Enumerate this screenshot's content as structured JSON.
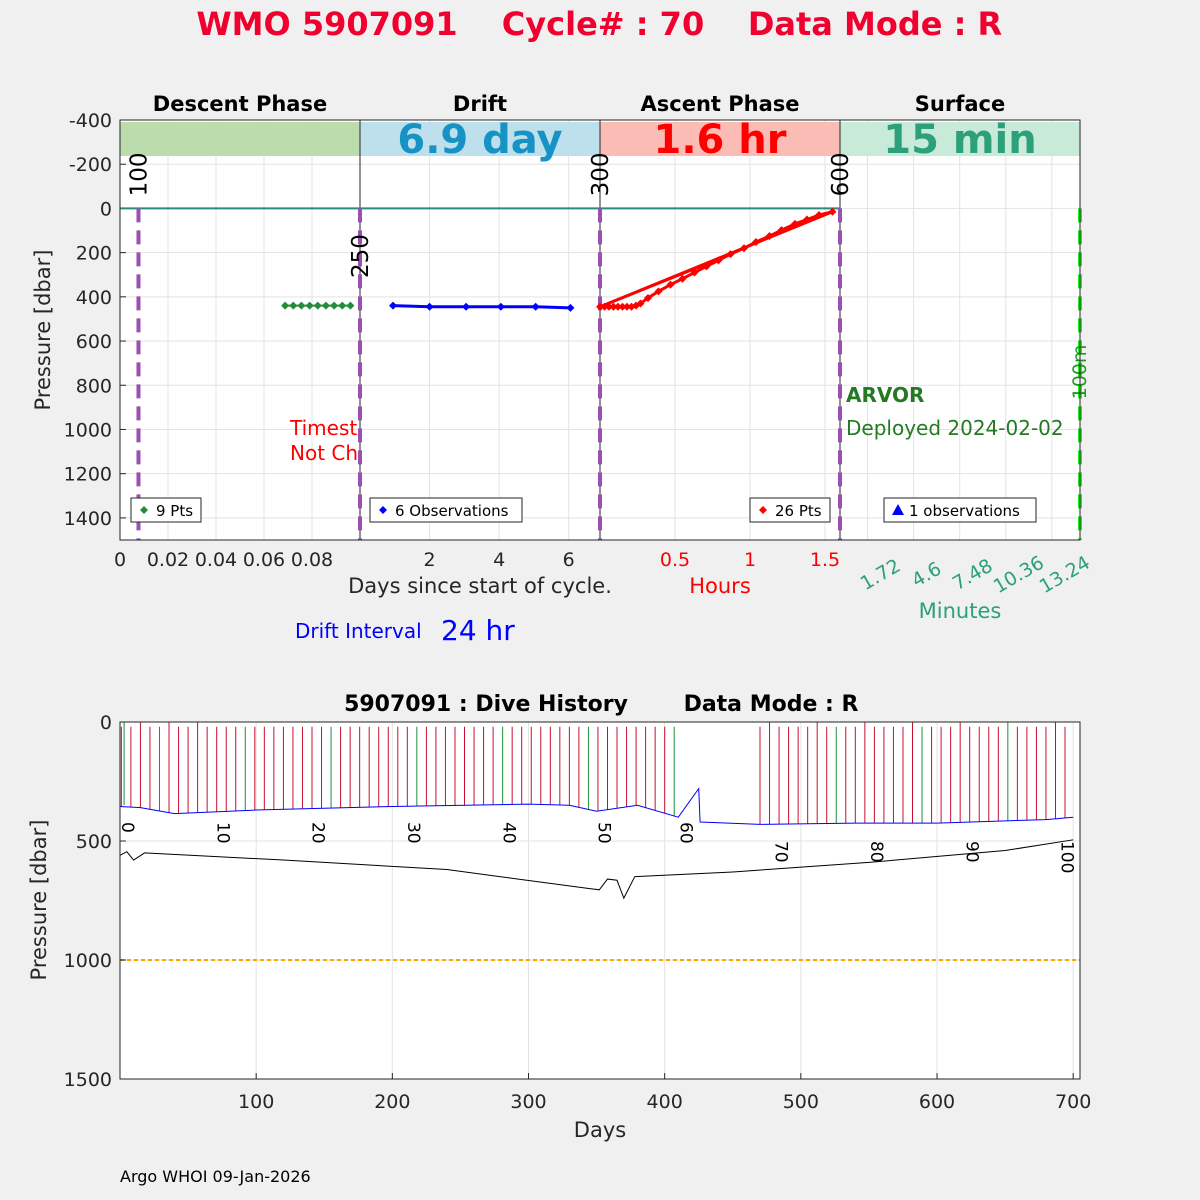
{
  "title": {
    "wmo": "WMO 5907091",
    "cycle": "Cycle# : 70",
    "mode": "Data Mode : R"
  },
  "colors": {
    "title": "#f0002e",
    "descent": "#238b3c",
    "drift": "#0000ff",
    "ascent": "#ff0000",
    "surface": "#2ca07a",
    "marker_line": "#9b4fb0",
    "surface_line": "#22ee22",
    "deploy_text": "#237a23",
    "history_profile": "#c8102e",
    "history_drift": "#0000ff",
    "history_park": "#000000",
    "history_ref": "#ffa500"
  },
  "phases": {
    "descent": {
      "label": "Descent Phase",
      "band_value": ""
    },
    "drift": {
      "label": "Drift",
      "band_value": "6.9 day"
    },
    "ascent": {
      "label": "Ascent Phase",
      "band_value": "1.6 hr"
    },
    "surface": {
      "label": "Surface",
      "band_value": "15 min"
    }
  },
  "top_chart": {
    "ylabel": "Pressure [dbar]",
    "ylim": [
      -400,
      1500
    ],
    "yticks": [
      -400,
      -200,
      0,
      200,
      400,
      600,
      800,
      1000,
      1200,
      1400
    ],
    "y_reversed": true,
    "grid": true,
    "descent_axis": {
      "xlim": [
        0,
        0.1
      ],
      "ticks": [
        "0",
        "0.02",
        "0.04",
        "0.06",
        "0.08"
      ],
      "tick_values": [
        0,
        0.02,
        0.04,
        0.06,
        0.08
      ],
      "xlabel": "Days since start of cycle."
    },
    "drift_axis": {
      "xlim": [
        0,
        6.9
      ],
      "ticks": [
        "2",
        "4",
        "6"
      ],
      "tick_values": [
        2,
        4,
        6
      ]
    },
    "ascent_axis": {
      "xlim": [
        0,
        1.6
      ],
      "ticks": [
        "0.5",
        "1",
        "1.5"
      ],
      "tick_values": [
        0.5,
        1,
        1.5
      ],
      "xlabel": "Hours"
    },
    "surface_axis": {
      "xlim": [
        0,
        15
      ],
      "ticks": [
        "1.72",
        "4.6",
        "7.48",
        "10.36",
        "13.24"
      ],
      "tick_values": [
        1.72,
        4.6,
        7.48,
        10.36,
        13.24
      ],
      "xlabel": "Minutes"
    },
    "vertical_markers": [
      {
        "label": "100",
        "axis": "descent",
        "x": 0.0077
      },
      {
        "label": "250",
        "axis": "drift",
        "x": 0.0
      },
      {
        "label": "300",
        "axis": "ascent",
        "x": 0.0
      },
      {
        "label": "600",
        "axis": "surface",
        "x": 0.0
      },
      {
        "label": "100m",
        "axis": "surface",
        "x": 15.0
      }
    ],
    "descent_points": {
      "x": [
        0.0688,
        0.0722,
        0.0756,
        0.079,
        0.0824,
        0.0858,
        0.0892,
        0.0926,
        0.096
      ],
      "y": [
        440,
        440,
        440,
        440,
        440,
        440,
        440,
        440,
        440
      ]
    },
    "drift_points": {
      "x": [
        0.95,
        2.0,
        3.05,
        4.05,
        5.05,
        6.05
      ],
      "y": [
        440,
        445,
        445,
        445,
        445,
        450
      ]
    },
    "ascent_points": {
      "x": [
        0.0,
        0.03,
        0.06,
        0.09,
        0.12,
        0.15,
        0.18,
        0.21,
        0.24,
        0.27,
        0.32,
        0.39,
        0.47,
        0.55,
        0.63,
        0.71,
        0.79,
        0.87,
        0.96,
        1.04,
        1.13,
        1.21,
        1.3,
        1.38,
        1.46,
        1.55
      ],
      "y": [
        445,
        445,
        445,
        445,
        445,
        445,
        445,
        445,
        440,
        430,
        405,
        375,
        345,
        318,
        290,
        262,
        235,
        207,
        180,
        152,
        125,
        98,
        70,
        50,
        30,
        15
      ],
      "path_order": [
        0,
        1,
        2,
        3,
        4,
        5,
        6,
        7,
        8,
        9,
        10,
        11,
        12,
        13,
        14,
        15,
        16,
        17,
        18,
        19,
        20,
        21,
        22,
        23,
        24,
        25,
        0,
        17,
        0
      ]
    },
    "legends": {
      "descent": "9 Pts",
      "drift": "6 Observations",
      "ascent": "26 Pts",
      "surface": "1 observations"
    },
    "annotations": {
      "timestamp_line1": "Timest",
      "timestamp_line2": "Not Ch",
      "float_type": "ARVOR",
      "deployed": "Deployed 2024-02-02"
    },
    "drift_interval_label": "Drift Interval",
    "drift_interval_value": "24 hr"
  },
  "history_chart": {
    "title_left": "5907091 : Dive History",
    "title_right": "Data Mode : R",
    "xlabel": "Days",
    "ylabel": "Pressure [dbar]",
    "xlim": [
      0,
      705
    ],
    "ylim": [
      0,
      1500
    ],
    "y_reversed": true,
    "xticks": [
      100,
      200,
      300,
      400,
      500,
      600,
      700
    ],
    "yticks": [
      0,
      500,
      1000,
      1500
    ],
    "ref_depth": 1000,
    "cycle_labels": [
      "0",
      "10",
      "20",
      "30",
      "40",
      "50",
      "60",
      "70",
      "80",
      "90",
      "100"
    ],
    "cycle_label_days": [
      0,
      70,
      140,
      210,
      280,
      350,
      410,
      480,
      550,
      620,
      690
    ],
    "park_line": {
      "x": [
        0,
        5,
        10,
        18,
        120,
        240,
        345,
        352,
        358,
        365,
        370,
        378,
        450,
        550,
        650,
        700
      ],
      "y": [
        560,
        545,
        580,
        550,
        580,
        620,
        700,
        705,
        660,
        665,
        740,
        650,
        630,
        590,
        540,
        495
      ]
    },
    "drift_line": {
      "x": [
        0,
        15,
        40,
        100,
        200,
        300,
        330,
        350,
        380,
        410,
        425,
        426,
        470,
        540,
        600,
        680,
        700
      ],
      "y": [
        355,
        360,
        385,
        370,
        355,
        345,
        350,
        375,
        350,
        400,
        280,
        420,
        430,
        425,
        425,
        410,
        400
      ]
    }
  },
  "footer": "Argo WHOI 09-Jan-2026"
}
